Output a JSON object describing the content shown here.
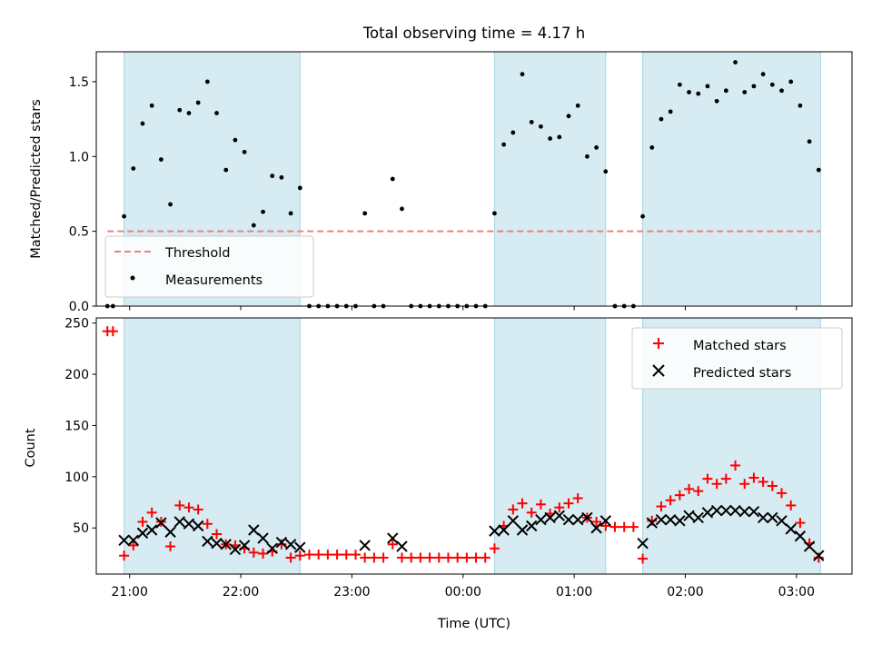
{
  "chart_data": [
    {
      "type": "scatter",
      "title": "Total observing time = 4.17 h",
      "ylabel": "Matched/Predicted stars",
      "xlim": [
        "20:42",
        "03:30"
      ],
      "ylim": [
        0,
        1.7
      ],
      "y_ticks": [
        "0.0",
        "0.5",
        "1.0",
        "1.5"
      ],
      "shaded_intervals": [
        [
          "20:57",
          "22:32"
        ],
        [
          "00:17",
          "01:17"
        ],
        [
          "01:37",
          "03:13"
        ]
      ],
      "legend": {
        "position": "lower-left",
        "entries": [
          "Threshold",
          "Measurements"
        ]
      },
      "threshold": {
        "name": "Threshold",
        "value": 0.5,
        "x_range": [
          "20:48",
          "03:13"
        ],
        "color": "#f08080"
      },
      "series": [
        {
          "name": "Measurements",
          "color": "#000000",
          "points": [
            [
              "20:48",
              0
            ],
            [
              "20:51",
              0
            ],
            [
              "20:57",
              0.6
            ],
            [
              "21:02",
              0.92
            ],
            [
              "21:07",
              1.22
            ],
            [
              "21:12",
              1.34
            ],
            [
              "21:17",
              0.98
            ],
            [
              "21:22",
              0.68
            ],
            [
              "21:27",
              1.31
            ],
            [
              "21:32",
              1.29
            ],
            [
              "21:37",
              1.36
            ],
            [
              "21:42",
              1.5
            ],
            [
              "21:47",
              1.29
            ],
            [
              "21:52",
              0.91
            ],
            [
              "21:57",
              1.11
            ],
            [
              "22:02",
              1.03
            ],
            [
              "22:07",
              0.54
            ],
            [
              "22:12",
              0.63
            ],
            [
              "22:17",
              0.87
            ],
            [
              "22:22",
              0.86
            ],
            [
              "22:27",
              0.62
            ],
            [
              "22:32",
              0.79
            ],
            [
              "22:37",
              0
            ],
            [
              "22:42",
              0
            ],
            [
              "22:47",
              0
            ],
            [
              "22:52",
              0
            ],
            [
              "22:57",
              0
            ],
            [
              "23:02",
              0
            ],
            [
              "23:07",
              0.62
            ],
            [
              "23:12",
              0
            ],
            [
              "23:17",
              0
            ],
            [
              "23:22",
              0.85
            ],
            [
              "23:27",
              0.65
            ],
            [
              "23:32",
              0
            ],
            [
              "23:37",
              0
            ],
            [
              "23:42",
              0
            ],
            [
              "23:47",
              0
            ],
            [
              "23:52",
              0
            ],
            [
              "23:57",
              0
            ],
            [
              "00:02",
              0
            ],
            [
              "00:07",
              0
            ],
            [
              "00:12",
              0
            ],
            [
              "00:17",
              0.62
            ],
            [
              "00:22",
              1.08
            ],
            [
              "00:27",
              1.16
            ],
            [
              "00:32",
              1.55
            ],
            [
              "00:37",
              1.23
            ],
            [
              "00:42",
              1.2
            ],
            [
              "00:47",
              1.12
            ],
            [
              "00:52",
              1.13
            ],
            [
              "00:57",
              1.27
            ],
            [
              "01:02",
              1.34
            ],
            [
              "01:07",
              1.0
            ],
            [
              "01:12",
              1.06
            ],
            [
              "01:17",
              0.9
            ],
            [
              "01:22",
              0
            ],
            [
              "01:27",
              0
            ],
            [
              "01:32",
              0
            ],
            [
              "01:37",
              0.6
            ],
            [
              "01:42",
              1.06
            ],
            [
              "01:47",
              1.25
            ],
            [
              "01:52",
              1.3
            ],
            [
              "01:57",
              1.48
            ],
            [
              "02:02",
              1.43
            ],
            [
              "02:07",
              1.42
            ],
            [
              "02:12",
              1.47
            ],
            [
              "02:17",
              1.37
            ],
            [
              "02:22",
              1.44
            ],
            [
              "02:27",
              1.63
            ],
            [
              "02:32",
              1.43
            ],
            [
              "02:37",
              1.47
            ],
            [
              "02:42",
              1.55
            ],
            [
              "02:47",
              1.48
            ],
            [
              "02:52",
              1.44
            ],
            [
              "02:57",
              1.5
            ],
            [
              "03:02",
              1.34
            ],
            [
              "03:07",
              1.1
            ],
            [
              "03:12",
              0.91
            ]
          ]
        }
      ]
    },
    {
      "type": "scatter",
      "xlabel": "Time (UTC)",
      "ylabel": "Count",
      "xlim": [
        "20:42",
        "03:30"
      ],
      "ylim": [
        5,
        255
      ],
      "y_ticks": [
        "50",
        "100",
        "150",
        "200",
        "250"
      ],
      "x_ticks": [
        "21:00",
        "22:00",
        "23:00",
        "00:00",
        "01:00",
        "02:00",
        "03:00"
      ],
      "shaded_intervals": [
        [
          "20:57",
          "22:32"
        ],
        [
          "00:17",
          "01:17"
        ],
        [
          "01:37",
          "03:13"
        ]
      ],
      "legend": {
        "position": "upper-right",
        "entries": [
          "Matched stars",
          "Predicted stars"
        ]
      },
      "series": [
        {
          "name": "Matched stars",
          "marker": "plus",
          "color": "#ff0000",
          "points": [
            [
              "20:48",
              242
            ],
            [
              "20:51",
              242
            ],
            [
              "20:57",
              23
            ],
            [
              "21:02",
              33
            ],
            [
              "21:07",
              56
            ],
            [
              "21:12",
              65
            ],
            [
              "21:17",
              56
            ],
            [
              "21:22",
              32
            ],
            [
              "21:27",
              72
            ],
            [
              "21:32",
              70
            ],
            [
              "21:37",
              68
            ],
            [
              "21:42",
              54
            ],
            [
              "21:47",
              44
            ],
            [
              "21:52",
              34
            ],
            [
              "21:57",
              33
            ],
            [
              "22:02",
              30
            ],
            [
              "22:07",
              26
            ],
            [
              "22:12",
              25
            ],
            [
              "22:17",
              27
            ],
            [
              "22:22",
              34
            ],
            [
              "22:27",
              21
            ],
            [
              "22:32",
              23
            ],
            [
              "22:37",
              24
            ],
            [
              "22:42",
              24
            ],
            [
              "22:47",
              24
            ],
            [
              "22:52",
              24
            ],
            [
              "22:57",
              24
            ],
            [
              "23:02",
              24
            ],
            [
              "23:07",
              21
            ],
            [
              "23:12",
              21
            ],
            [
              "23:17",
              21
            ],
            [
              "23:22",
              34
            ],
            [
              "23:27",
              21
            ],
            [
              "23:32",
              21
            ],
            [
              "23:37",
              21
            ],
            [
              "23:42",
              21
            ],
            [
              "23:47",
              21
            ],
            [
              "23:52",
              21
            ],
            [
              "23:57",
              21
            ],
            [
              "00:02",
              21
            ],
            [
              "00:07",
              21
            ],
            [
              "00:12",
              21
            ],
            [
              "00:17",
              30
            ],
            [
              "00:22",
              52
            ],
            [
              "00:27",
              68
            ],
            [
              "00:32",
              74
            ],
            [
              "00:37",
              65
            ],
            [
              "00:42",
              73
            ],
            [
              "00:47",
              64
            ],
            [
              "00:52",
              70
            ],
            [
              "00:57",
              74
            ],
            [
              "01:02",
              79
            ],
            [
              "01:07",
              60
            ],
            [
              "01:12",
              56
            ],
            [
              "01:17",
              52
            ],
            [
              "01:22",
              51
            ],
            [
              "01:27",
              51
            ],
            [
              "01:32",
              51
            ],
            [
              "01:37",
              20
            ],
            [
              "01:42",
              57
            ],
            [
              "01:47",
              71
            ],
            [
              "01:52",
              77
            ],
            [
              "01:57",
              82
            ],
            [
              "02:02",
              88
            ],
            [
              "02:07",
              86
            ],
            [
              "02:12",
              98
            ],
            [
              "02:17",
              93
            ],
            [
              "02:22",
              98
            ],
            [
              "02:27",
              111
            ],
            [
              "02:32",
              93
            ],
            [
              "02:37",
              99
            ],
            [
              "02:42",
              95
            ],
            [
              "02:47",
              91
            ],
            [
              "02:52",
              84
            ],
            [
              "02:57",
              72
            ],
            [
              "03:02",
              55
            ],
            [
              "03:07",
              35
            ],
            [
              "03:12",
              21
            ]
          ]
        },
        {
          "name": "Predicted stars",
          "marker": "x",
          "color": "#000000",
          "points": [
            [
              "20:57",
              38
            ],
            [
              "21:02",
              38
            ],
            [
              "21:07",
              45
            ],
            [
              "21:12",
              48
            ],
            [
              "21:17",
              55
            ],
            [
              "21:22",
              46
            ],
            [
              "21:27",
              56
            ],
            [
              "21:32",
              54
            ],
            [
              "21:37",
              52
            ],
            [
              "21:42",
              37
            ],
            [
              "21:47",
              35
            ],
            [
              "21:52",
              34
            ],
            [
              "21:57",
              29
            ],
            [
              "22:02",
              33
            ],
            [
              "22:07",
              48
            ],
            [
              "22:12",
              40
            ],
            [
              "22:17",
              30
            ],
            [
              "22:22",
              36
            ],
            [
              "22:27",
              34
            ],
            [
              "22:32",
              31
            ],
            [
              "23:07",
              33
            ],
            [
              "23:22",
              40
            ],
            [
              "23:27",
              32
            ],
            [
              "00:17",
              47
            ],
            [
              "00:22",
              48
            ],
            [
              "00:27",
              57
            ],
            [
              "00:32",
              48
            ],
            [
              "00:37",
              52
            ],
            [
              "00:42",
              58
            ],
            [
              "00:47",
              60
            ],
            [
              "00:52",
              62
            ],
            [
              "00:57",
              58
            ],
            [
              "01:02",
              58
            ],
            [
              "01:07",
              60
            ],
            [
              "01:12",
              50
            ],
            [
              "01:17",
              57
            ],
            [
              "01:37",
              35
            ],
            [
              "01:42",
              55
            ],
            [
              "01:47",
              58
            ],
            [
              "01:52",
              58
            ],
            [
              "01:57",
              57
            ],
            [
              "02:02",
              62
            ],
            [
              "02:07",
              60
            ],
            [
              "02:12",
              65
            ],
            [
              "02:17",
              67
            ],
            [
              "02:22",
              67
            ],
            [
              "02:27",
              67
            ],
            [
              "02:32",
              66
            ],
            [
              "02:37",
              66
            ],
            [
              "02:42",
              60
            ],
            [
              "02:47",
              60
            ],
            [
              "02:52",
              57
            ],
            [
              "02:57",
              49
            ],
            [
              "03:02",
              42
            ],
            [
              "03:07",
              32
            ],
            [
              "03:12",
              23
            ]
          ]
        }
      ]
    }
  ]
}
